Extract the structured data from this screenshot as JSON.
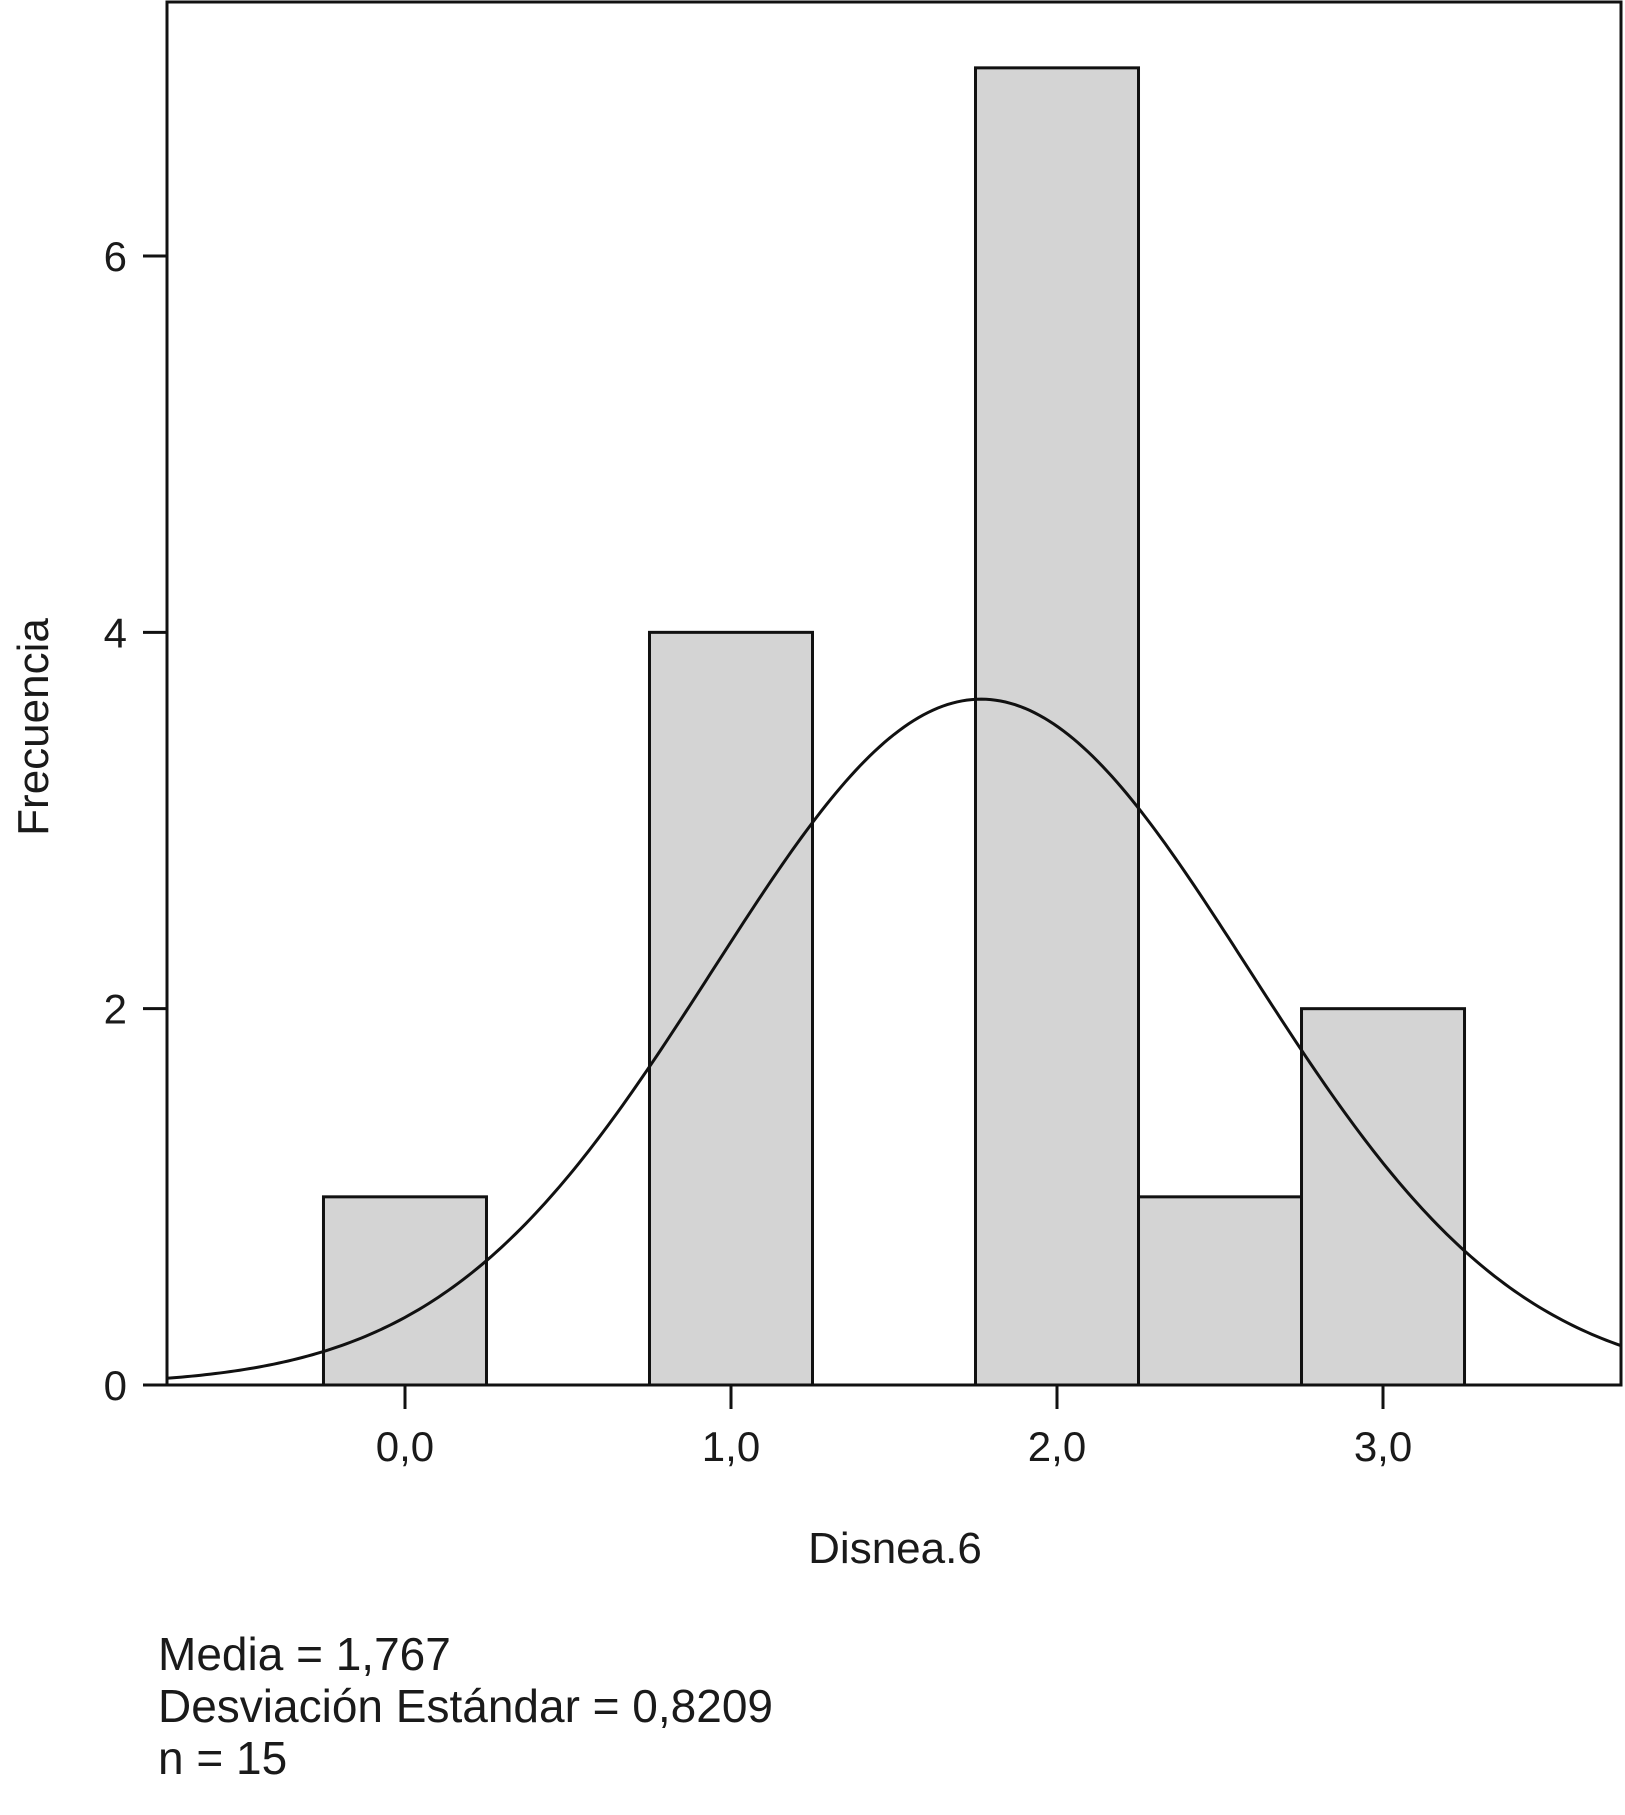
{
  "chart_data": {
    "type": "bar",
    "subtype": "histogram",
    "xlabel": "Disnea.6",
    "ylabel": "Frecuencia",
    "x_ticks": [
      {
        "value": 0,
        "label": "0,0"
      },
      {
        "value": 1,
        "label": "1,0"
      },
      {
        "value": 2,
        "label": "2,0"
      },
      {
        "value": 3,
        "label": "3,0"
      }
    ],
    "y_ticks": [
      {
        "value": 0,
        "label": "0"
      },
      {
        "value": 2,
        "label": "2"
      },
      {
        "value": 4,
        "label": "4"
      },
      {
        "value": 6,
        "label": "6"
      }
    ],
    "xlim": [
      -0.73,
      3.73
    ],
    "ylim": [
      0,
      7.35
    ],
    "bins": [
      {
        "x0": -0.25,
        "x1": 0.25,
        "count": 1
      },
      {
        "x0": 0.75,
        "x1": 1.25,
        "count": 4
      },
      {
        "x0": 1.75,
        "x1": 2.25,
        "count": 7
      },
      {
        "x0": 2.25,
        "x1": 2.75,
        "count": 1
      },
      {
        "x0": 2.75,
        "x1": 3.25,
        "count": 2
      }
    ],
    "bar_color": "#d4d4d4",
    "normal_curve": {
      "mean": 1.767,
      "sd": 0.8209,
      "n": 15,
      "bin_width": 0.5
    },
    "grid": false,
    "legend": "none"
  },
  "stats": {
    "mean_line": "Media = 1,767",
    "sd_line": "Desviación Estándar = 0,8209",
    "n_line": "n = 15"
  }
}
